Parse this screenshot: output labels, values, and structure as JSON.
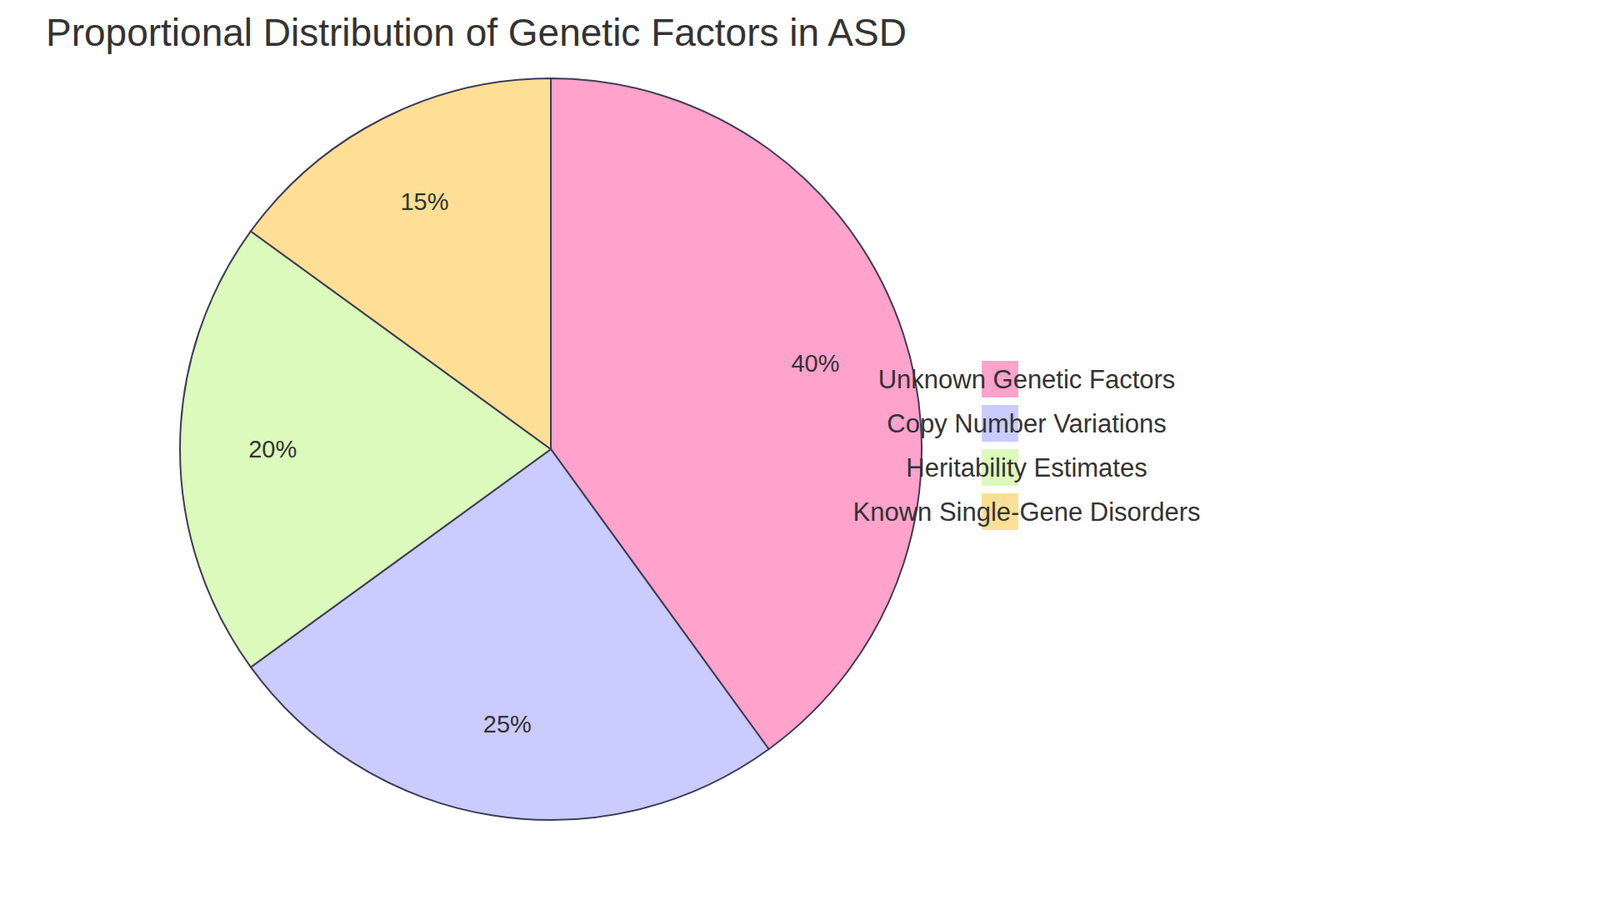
{
  "chart_data": {
    "type": "pie",
    "title": "Proportional Distribution of Genetic Factors in ASD",
    "categories": [
      "Unknown Genetic Factors",
      "Copy Number Variations",
      "Heritability Estimates",
      "Known Single-Gene Disorders"
    ],
    "values": [
      40,
      25,
      20,
      15
    ],
    "value_labels": [
      "40%",
      "25%",
      "20%",
      "15%"
    ],
    "colors": [
      "#ffa2cc",
      "#cacbff",
      "#dbfabb",
      "#ffdf95"
    ],
    "data_labels": true,
    "legend": "right"
  }
}
